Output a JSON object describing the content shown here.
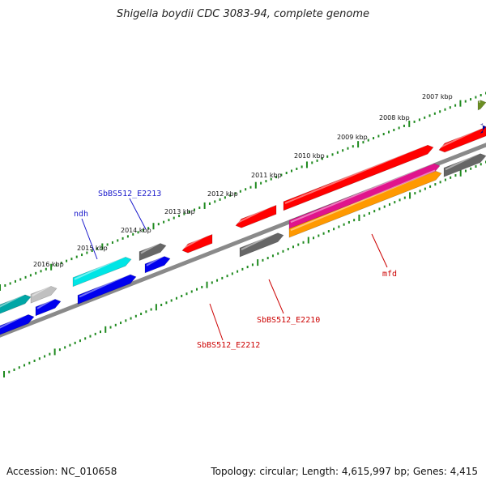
{
  "title": "Shigella boydii CDC 3083-94, complete genome",
  "footer": {
    "accession": "Accession: NC_010658",
    "topology": "Topology: circular; Length: 4,615,997 bp; Genes: 4,415"
  },
  "colors": {
    "backbone": "#8a8a8a",
    "tick_ring": "#1f8a1f",
    "label_blue": "#1a1acc",
    "label_red": "#cc0000"
  },
  "kbp_labels": [
    "2007 kbp",
    "2008 kbp",
    "2009 kbp",
    "2010 kbp",
    "2011 kbp",
    "2012 kbp",
    "2013 kbp",
    "2014 kbp",
    "2015 kbp",
    "2016 kbp"
  ],
  "gene_labels": {
    "ndh": "ndh",
    "sbbs_e2213": "SbBS512_E2213",
    "sbbs_e2212": "SbBS512_E2212",
    "sbbs_e2210": "SbBS512_E2210",
    "mfd": "mfd"
  }
}
